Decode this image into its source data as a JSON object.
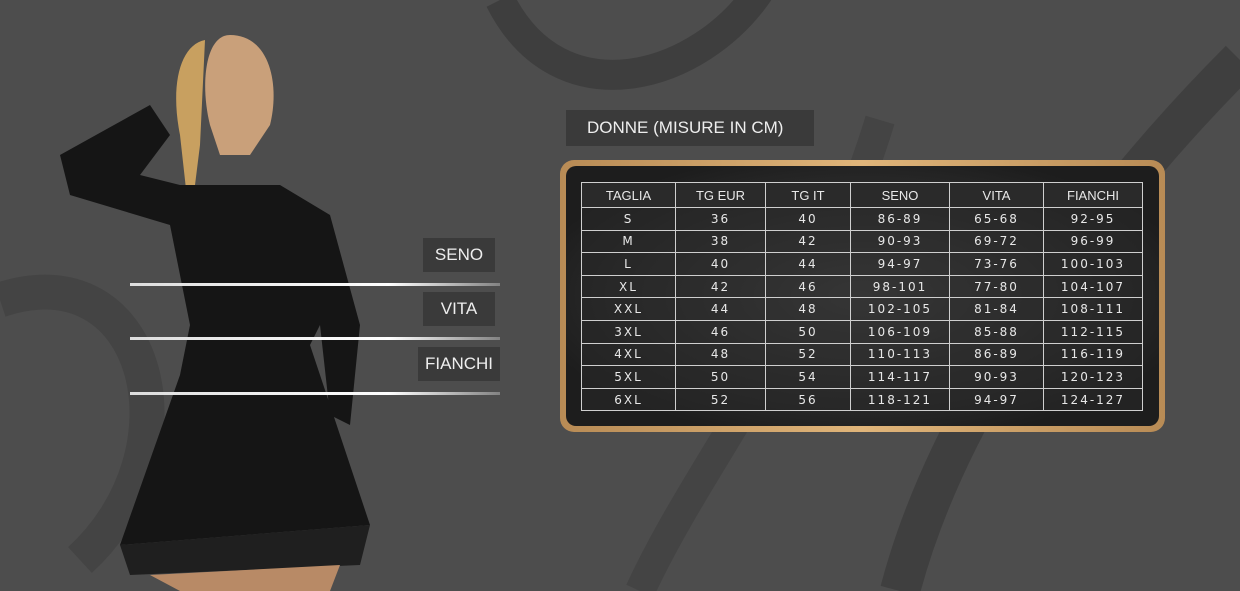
{
  "title": "DONNE (MISURE IN CM)",
  "labels": {
    "bust": "SENO",
    "waist": "VITA",
    "hips": "FIANCHI"
  },
  "table": {
    "headers": [
      "TAGLIA",
      "TG EUR",
      "TG IT",
      "SENO",
      "VITA",
      "FIANCHI"
    ],
    "rows": [
      [
        "S",
        "36",
        "40",
        "86-89",
        "65-68",
        "92-95"
      ],
      [
        "M",
        "38",
        "42",
        "90-93",
        "69-72",
        "96-99"
      ],
      [
        "L",
        "40",
        "44",
        "94-97",
        "73-76",
        "100-103"
      ],
      [
        "XL",
        "42",
        "46",
        "98-101",
        "77-80",
        "104-107"
      ],
      [
        "XXL",
        "44",
        "48",
        "102-105",
        "81-84",
        "108-111"
      ],
      [
        "3XL",
        "46",
        "50",
        "106-109",
        "85-88",
        "112-115"
      ],
      [
        "4XL",
        "48",
        "52",
        "110-113",
        "86-89",
        "116-119"
      ],
      [
        "5XL",
        "50",
        "54",
        "114-117",
        "90-93",
        "120-123"
      ],
      [
        "6XL",
        "52",
        "56",
        "118-121",
        "94-97",
        "124-127"
      ]
    ]
  },
  "colors": {
    "background": "#4d4d4d",
    "frame_gold": "#d4a86e",
    "table_bg": "#222222"
  }
}
